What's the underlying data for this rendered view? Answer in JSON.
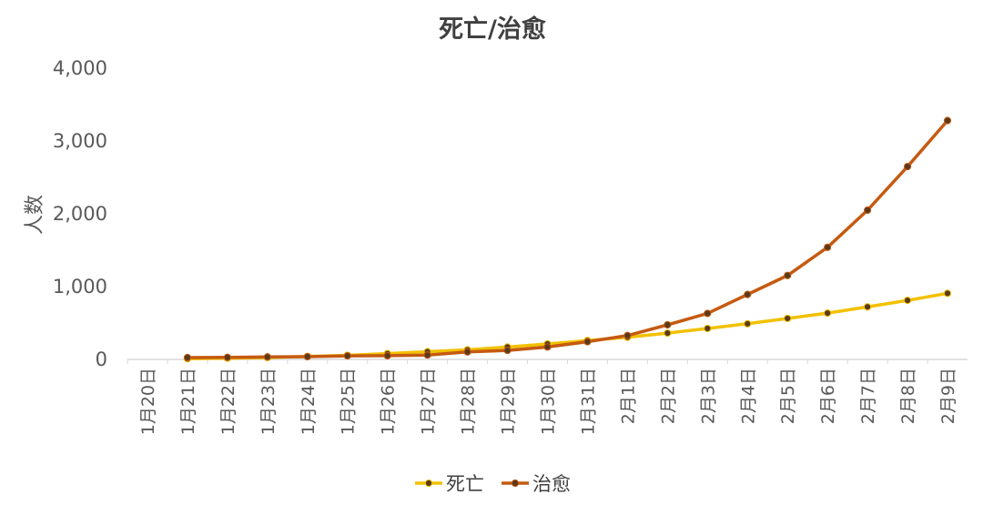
{
  "chart_data": {
    "type": "line",
    "title": "死亡/治愈",
    "xlabel": "",
    "ylabel": "人数",
    "ylim": [
      0,
      4000
    ],
    "yticks": [
      "0",
      "1,000",
      "2,000",
      "3,000",
      "4,000"
    ],
    "grid": false,
    "legend_position": "bottom",
    "categories": [
      "1月20日",
      "1月21日",
      "1月22日",
      "1月23日",
      "1月24日",
      "1月25日",
      "1月26日",
      "1月27日",
      "1月28日",
      "1月29日",
      "1月30日",
      "1月31日",
      "2月1日",
      "2月2日",
      "2月3日",
      "2月4日",
      "2月5日",
      "2月6日",
      "2月7日",
      "2月8日",
      "2月9日"
    ],
    "series": [
      {
        "name": "死亡",
        "color": "#f2c100",
        "values": [
          null,
          9,
          17,
          25,
          41,
          56,
          80,
          106,
          132,
          170,
          213,
          259,
          304,
          361,
          425,
          490,
          563,
          636,
          722,
          811,
          908
        ]
      },
      {
        "name": "治愈",
        "color": "#c55a11",
        "values": [
          null,
          25,
          28,
          34,
          38,
          49,
          51,
          60,
          103,
          124,
          171,
          243,
          328,
          475,
          632,
          892,
          1153,
          1540,
          2050,
          2649,
          3281
        ]
      }
    ]
  }
}
